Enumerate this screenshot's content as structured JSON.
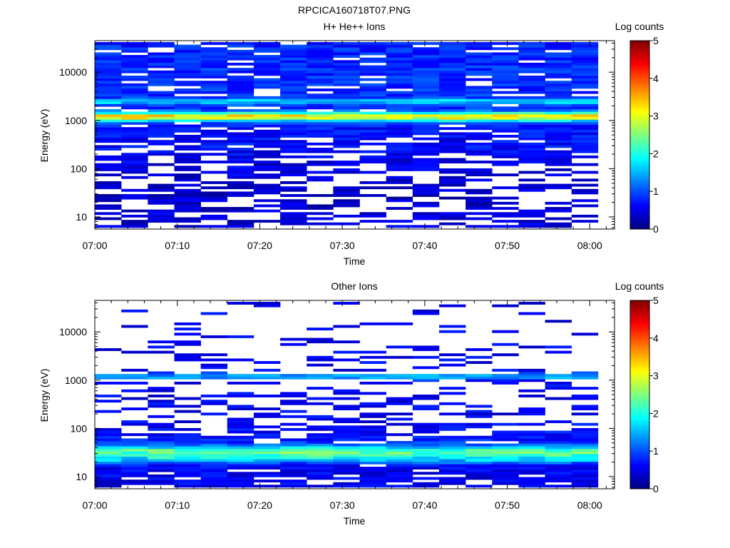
{
  "title": "RPCICA160718T07.PNG",
  "colors": {
    "colormap": [
      "#00007f",
      "#0000ff",
      "#007fff",
      "#00ffff",
      "#7fff7f",
      "#ffff00",
      "#ff7f00",
      "#ff0000",
      "#7f0000"
    ],
    "background": "#ffffff",
    "axis": "#000000"
  },
  "chart_data": [
    {
      "type": "heatmap",
      "title": "H+ He++ Ions",
      "xlabel": "Time",
      "ylabel": "Energy (eV)",
      "x_ticks": [
        "07:00",
        "07:10",
        "07:20",
        "07:30",
        "07:40",
        "07:50",
        "08:00"
      ],
      "x_range_minutes": [
        0,
        63
      ],
      "data_end_minute": 61,
      "y_ticks": [
        "10",
        "100",
        "1000",
        "10000"
      ],
      "y_tick_values": [
        10,
        100,
        1000,
        10000
      ],
      "y_range": [
        5.6,
        45000
      ],
      "y_scale": "log",
      "colorbar": {
        "label": "Log counts",
        "ticks": [
          "0",
          "1",
          "2",
          "3",
          "4",
          "5"
        ],
        "range": [
          0,
          5
        ]
      },
      "time_bins": 19,
      "energy_bins": 72,
      "profile": {
        "baseline": [
          0.2,
          0.2,
          0.2,
          0.2,
          0.2,
          0.2,
          0.2,
          0.15,
          0.1,
          0.1,
          0.1,
          0.1,
          0.1,
          0.1,
          0.15,
          0.15,
          0.15,
          0.15,
          0.15,
          0.15,
          0.2,
          0.2,
          0.25,
          0.25,
          0.25,
          0.3,
          0.3,
          0.3,
          0.35,
          0.35,
          0.35,
          0.4,
          0.4,
          0.4,
          0.4,
          0.45,
          0.45,
          0.45,
          0.45,
          0.5,
          0.5,
          0.5,
          0.5,
          0.55,
          0.55,
          0.55,
          0.55,
          0.6,
          0.6,
          0.6,
          0.6,
          0.6,
          0.6,
          0.6,
          0.6,
          0.6,
          0.6,
          0.6,
          0.6,
          0.6,
          0.6,
          0.6,
          0.6,
          0.55,
          0.55,
          0.55,
          0.55,
          0.55,
          0.55,
          0.55,
          0.55,
          0.55
        ],
        "fill_probability": [
          0.55,
          0.55,
          0.55,
          0.55,
          0.55,
          0.55,
          0.55,
          0.55,
          0.45,
          0.45,
          0.45,
          0.45,
          0.45,
          0.45,
          0.5,
          0.5,
          0.5,
          0.5,
          0.5,
          0.5,
          0.55,
          0.55,
          0.6,
          0.6,
          0.6,
          0.65,
          0.65,
          0.65,
          0.7,
          0.7,
          0.7,
          0.7,
          0.75,
          0.75,
          0.75,
          0.8,
          0.8,
          0.8,
          0.8,
          0.85,
          0.85,
          0.85,
          0.85,
          0.85,
          0.85,
          0.9,
          0.9,
          0.9,
          0.9,
          0.9,
          0.9,
          0.9,
          0.9,
          0.9,
          0.9,
          0.9,
          0.9,
          0.9,
          0.9,
          0.9,
          0.9,
          0.9,
          0.9,
          0.9,
          0.9,
          0.9,
          0.9,
          0.9,
          0.9,
          0.9,
          0.9,
          0.9
        ],
        "peaks": [
          {
            "energy": 1200,
            "width_bins": 1.2,
            "amplitude": 2.6
          },
          {
            "energy": 2500,
            "width_bins": 0.8,
            "amplitude": 0.9
          }
        ],
        "seed": 7
      }
    },
    {
      "type": "heatmap",
      "title": "Other Ions",
      "xlabel": "Time",
      "ylabel": "Energy (eV)",
      "x_ticks": [
        "07:00",
        "07:10",
        "07:20",
        "07:30",
        "07:40",
        "07:50",
        "08:00"
      ],
      "x_range_minutes": [
        0,
        63
      ],
      "data_end_minute": 61,
      "y_ticks": [
        "10",
        "100",
        "1000",
        "10000"
      ],
      "y_tick_values": [
        10,
        100,
        1000,
        10000
      ],
      "y_range": [
        5.6,
        45000
      ],
      "y_scale": "log",
      "colorbar": {
        "label": "Log counts",
        "ticks": [
          "0",
          "1",
          "2",
          "3",
          "4",
          "5"
        ],
        "range": [
          0,
          5
        ]
      },
      "time_bins": 19,
      "energy_bins": 72,
      "profile": {
        "baseline": [
          0.3,
          0.3,
          0.3,
          0.3,
          0.3,
          0.3,
          0.3,
          0.3,
          0.35,
          0.35,
          0.35,
          0.35,
          0.4,
          0.4,
          0.4,
          0.45,
          0.45,
          0.45,
          0.45,
          0.45,
          0.4,
          0.4,
          0.4,
          0.35,
          0.35,
          0.35,
          0.3,
          0.3,
          0.3,
          0.3,
          0.3,
          0.3,
          0.3,
          0.3,
          0.3,
          0.3,
          0.3,
          0.3,
          0.3,
          0.3,
          0.3,
          0.3,
          0.3,
          0.3,
          0.3,
          0.3,
          0.3,
          0.3,
          0.3,
          0.3,
          0.3,
          0.3,
          0.3,
          0.3,
          0.3,
          0.3,
          0.3,
          0.3,
          0.3,
          0.3,
          0.3,
          0.3,
          0.3,
          0.3,
          0.3,
          0.3,
          0.3,
          0.3,
          0.3,
          0.3,
          0.3,
          0.3
        ],
        "fill_probability": [
          0.85,
          0.85,
          0.85,
          0.9,
          0.9,
          0.95,
          0.95,
          0.95,
          0.95,
          0.95,
          0.95,
          0.95,
          0.95,
          0.95,
          0.95,
          0.9,
          0.85,
          0.8,
          0.75,
          0.7,
          0.65,
          0.6,
          0.55,
          0.5,
          0.45,
          0.4,
          0.35,
          0.35,
          0.35,
          0.3,
          0.3,
          0.35,
          0.3,
          0.3,
          0.3,
          0.25,
          0.25,
          0.3,
          0.25,
          0.25,
          0.25,
          0.25,
          0.25,
          0.25,
          0.25,
          0.25,
          0.2,
          0.2,
          0.2,
          0.2,
          0.2,
          0.2,
          0.2,
          0.2,
          0.15,
          0.15,
          0.15,
          0.15,
          0.15,
          0.15,
          0.15,
          0.15,
          0.15,
          0.15,
          0.1,
          0.1,
          0.1,
          0.1,
          0.1,
          0.1,
          0.1,
          0.15
        ],
        "peaks": [
          {
            "energy": 32,
            "width_bins": 1.8,
            "amplitude": 1.8
          },
          {
            "energy": 22,
            "width_bins": 1.0,
            "amplitude": 0.6
          },
          {
            "energy": 1200,
            "width_bins": 0.9,
            "amplitude": 1.0
          }
        ],
        "seed": 19
      }
    }
  ]
}
